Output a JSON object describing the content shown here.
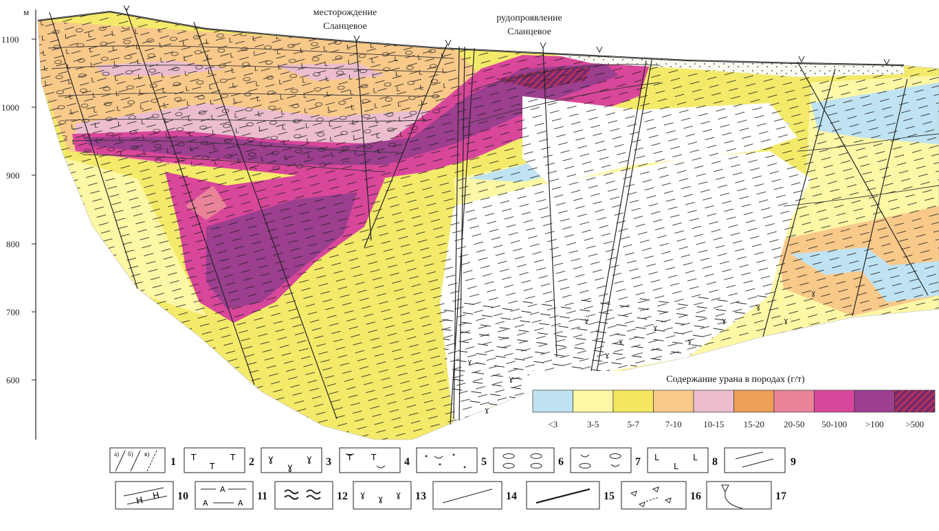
{
  "axis": {
    "unit": "м",
    "ticks": [
      "1100",
      "1000",
      "900",
      "800",
      "700",
      "600"
    ]
  },
  "labels": {
    "deposit": [
      "месторождение",
      "Сланцевое"
    ],
    "occurrence": [
      "рудопроявление",
      "Сланцевое"
    ]
  },
  "uranium_legend": {
    "title": "Содержание урана в породах (г/т)",
    "classes": [
      {
        "label": "<3",
        "color": "#bfe3f3"
      },
      {
        "label": "3-5",
        "color": "#fdf7a6"
      },
      {
        "label": "5-7",
        "color": "#f3e75f"
      },
      {
        "label": "7-10",
        "color": "#f9c98a"
      },
      {
        "label": "10-15",
        "color": "#ebbdcf"
      },
      {
        "label": "15-20",
        "color": "#ec9f55"
      },
      {
        "label": "20-50",
        "color": "#e9839a"
      },
      {
        "label": "50-100",
        "color": "#d9479a"
      },
      {
        "label": ">100",
        "color": "#9b3f8e"
      },
      {
        "label": ">500",
        "color": "#7a2a6e"
      }
    ]
  },
  "key": {
    "row1": [
      "1",
      "2",
      "3",
      "4",
      "5",
      "6",
      "7",
      "8",
      "9"
    ],
    "row2": [
      "10",
      "11",
      "12",
      "13",
      "14",
      "15",
      "16",
      "17"
    ],
    "sublabels": [
      "а)",
      "б)",
      "в)"
    ]
  }
}
